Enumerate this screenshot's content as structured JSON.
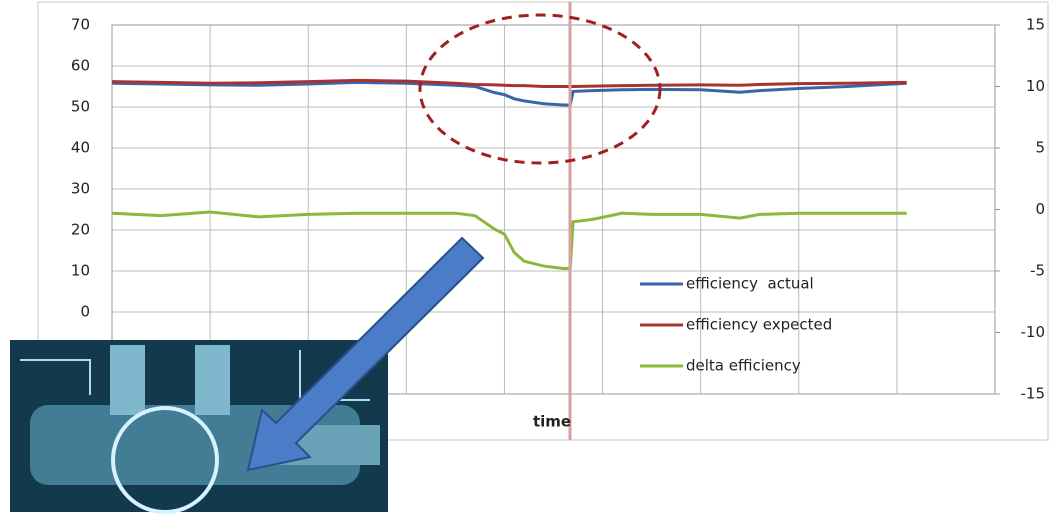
{
  "chart_data": {
    "type": "line",
    "xlabel": "time",
    "x": [
      0,
      5,
      10,
      15,
      20,
      25,
      30,
      35,
      37,
      39,
      40,
      41,
      42,
      44,
      46,
      46.7,
      47,
      49,
      52,
      55,
      60,
      64,
      66,
      70,
      75,
      81
    ],
    "xlim": [
      0,
      90
    ],
    "xgrid": [
      0,
      10,
      20,
      30,
      40,
      50,
      60,
      70,
      80,
      90
    ],
    "ylim": [
      -20,
      70
    ],
    "yticks": [
      0,
      10,
      20,
      30,
      40,
      50,
      60,
      70
    ],
    "y2lim": [
      -15,
      15
    ],
    "y2ticks": [
      15,
      10,
      5,
      0,
      -5,
      -10,
      -15
    ],
    "grid": true,
    "series": [
      {
        "name": "efficiency  actual",
        "color": "#3a66a8",
        "values": [
          55.8,
          55.6,
          55.4,
          55.3,
          55.6,
          56,
          55.8,
          55.3,
          55,
          53.5,
          53,
          52,
          51.5,
          50.8,
          50.5,
          50.5,
          53.8,
          54,
          54.2,
          54.3,
          54.2,
          53.6,
          54,
          54.5,
          55,
          55.8
        ]
      },
      {
        "name": "efficiency expected",
        "color": "#a83232",
        "values": [
          56.2,
          56,
          55.8,
          55.9,
          56.2,
          56.5,
          56.3,
          55.8,
          55.5,
          55.4,
          55.3,
          55.2,
          55.2,
          55,
          55,
          55,
          55,
          55.1,
          55.2,
          55.3,
          55.4,
          55.3,
          55.5,
          55.7,
          55.8,
          56
        ]
      },
      {
        "name": "delta efficiency",
        "color": "#8db63c",
        "axis": "y2",
        "values": [
          -0.3,
          -0.5,
          -0.2,
          -0.6,
          -0.4,
          -0.3,
          -0.3,
          -0.3,
          -0.5,
          -1.6,
          -2,
          -3.5,
          -4.2,
          -4.6,
          -4.8,
          -4.8,
          -1,
          -0.8,
          -0.3,
          -0.4,
          -0.4,
          -0.7,
          -0.4,
          -0.3,
          -0.3,
          -0.3
        ]
      }
    ]
  }
}
